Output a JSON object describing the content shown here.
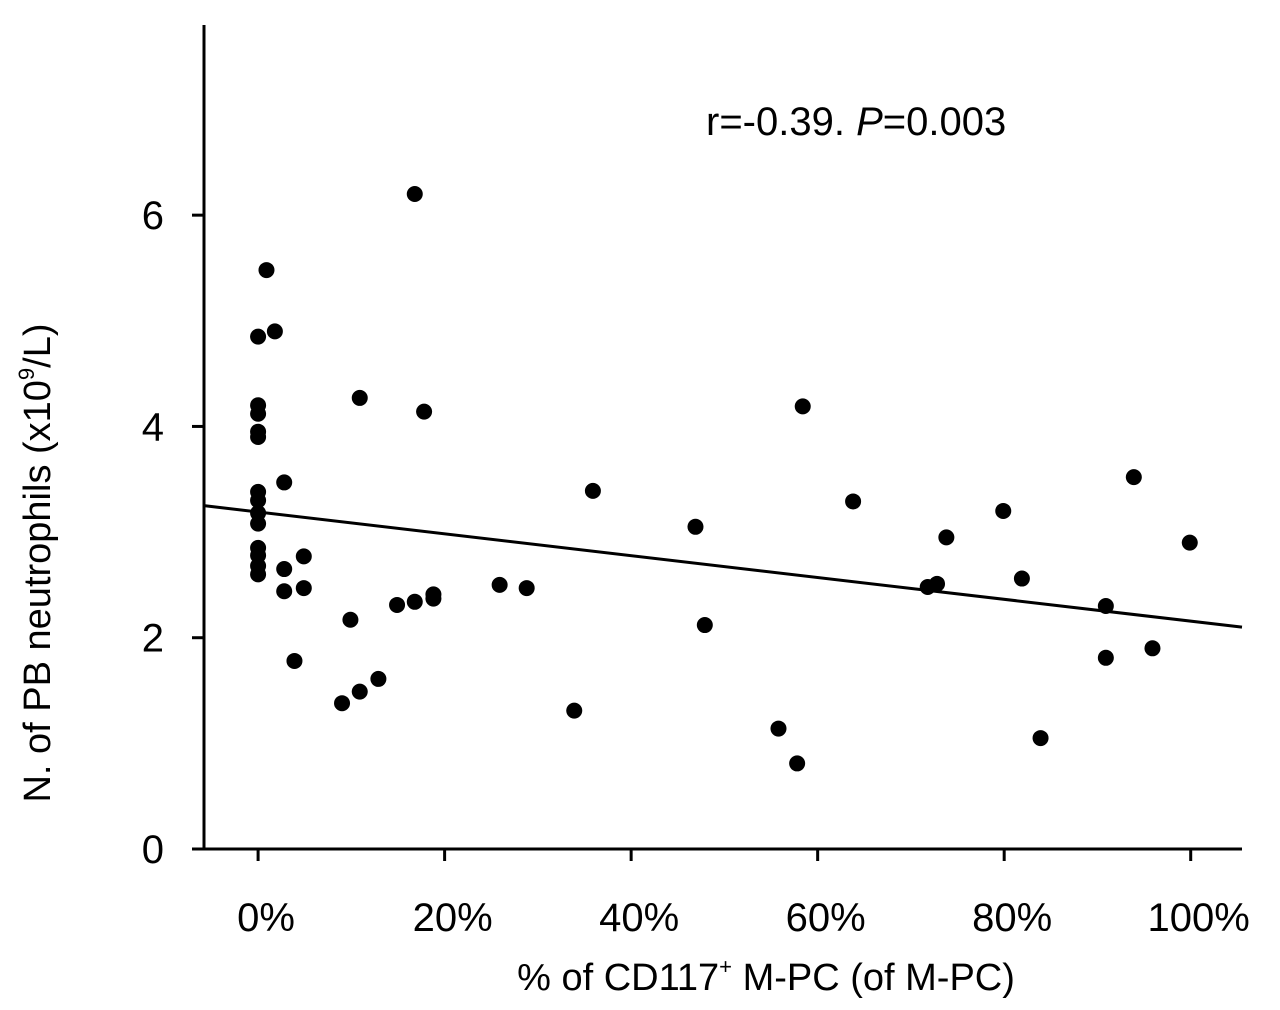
{
  "chart_data": {
    "type": "scatter",
    "xlabel": {
      "pre": "% of CD117",
      "sup": "+",
      "post": " M-PC (of M-PC)"
    },
    "ylabel": {
      "pre": "N. of PB neutrophils (x10",
      "sup": "9",
      "post": "/L)"
    },
    "annotation": {
      "r_text": "r=-0.39. ",
      "p_label": "P",
      "p_value": "=0.003"
    },
    "xlim": [
      -5.8,
      105.5
    ],
    "ylim": [
      0,
      7.8
    ],
    "x_ticks": [
      0,
      20,
      40,
      60,
      80,
      100
    ],
    "x_tick_labels": [
      "0%",
      "20%",
      "40%",
      "60%",
      "80%",
      "100%"
    ],
    "y_ticks": [
      0,
      2,
      4,
      6
    ],
    "y_tick_labels": [
      "0",
      "2",
      "4",
      "6"
    ],
    "regression": {
      "x": [
        -5.8,
        105.5
      ],
      "y": [
        3.25,
        2.1
      ]
    },
    "points": [
      {
        "x": 0,
        "y": 4.85
      },
      {
        "x": 0,
        "y": 4.2
      },
      {
        "x": 0,
        "y": 4.12
      },
      {
        "x": 0,
        "y": 3.95
      },
      {
        "x": 0,
        "y": 3.9
      },
      {
        "x": 0,
        "y": 3.38
      },
      {
        "x": 0,
        "y": 3.3
      },
      {
        "x": 0,
        "y": 3.18
      },
      {
        "x": 0,
        "y": 3.08
      },
      {
        "x": 0,
        "y": 2.85
      },
      {
        "x": 0,
        "y": 2.78
      },
      {
        "x": 0,
        "y": 2.68
      },
      {
        "x": 0,
        "y": 2.6
      },
      {
        "x": 0.9,
        "y": 5.48
      },
      {
        "x": 1.8,
        "y": 4.9
      },
      {
        "x": 2.8,
        "y": 3.47
      },
      {
        "x": 2.8,
        "y": 2.65
      },
      {
        "x": 2.8,
        "y": 2.44
      },
      {
        "x": 3.9,
        "y": 1.78
      },
      {
        "x": 4.9,
        "y": 2.77
      },
      {
        "x": 4.9,
        "y": 2.47
      },
      {
        "x": 9.0,
        "y": 1.38
      },
      {
        "x": 9.9,
        "y": 2.17
      },
      {
        "x": 10.9,
        "y": 1.49
      },
      {
        "x": 10.9,
        "y": 4.27
      },
      {
        "x": 12.9,
        "y": 1.61
      },
      {
        "x": 14.9,
        "y": 2.31
      },
      {
        "x": 16.8,
        "y": 2.34
      },
      {
        "x": 16.8,
        "y": 6.2
      },
      {
        "x": 17.8,
        "y": 4.14
      },
      {
        "x": 18.8,
        "y": 2.41
      },
      {
        "x": 18.8,
        "y": 2.37
      },
      {
        "x": 25.9,
        "y": 2.5
      },
      {
        "x": 28.8,
        "y": 2.47
      },
      {
        "x": 33.9,
        "y": 1.31
      },
      {
        "x": 35.9,
        "y": 3.39
      },
      {
        "x": 46.9,
        "y": 3.05
      },
      {
        "x": 47.9,
        "y": 2.12
      },
      {
        "x": 55.8,
        "y": 1.14
      },
      {
        "x": 57.8,
        "y": 0.81
      },
      {
        "x": 58.4,
        "y": 4.19
      },
      {
        "x": 63.8,
        "y": 3.29
      },
      {
        "x": 71.8,
        "y": 2.48
      },
      {
        "x": 72.8,
        "y": 2.51
      },
      {
        "x": 73.8,
        "y": 2.95
      },
      {
        "x": 79.9,
        "y": 3.2
      },
      {
        "x": 81.9,
        "y": 2.56
      },
      {
        "x": 83.9,
        "y": 1.05
      },
      {
        "x": 90.9,
        "y": 2.3
      },
      {
        "x": 90.9,
        "y": 1.81
      },
      {
        "x": 93.9,
        "y": 3.52
      },
      {
        "x": 95.9,
        "y": 1.9
      },
      {
        "x": 99.9,
        "y": 2.9
      }
    ]
  }
}
